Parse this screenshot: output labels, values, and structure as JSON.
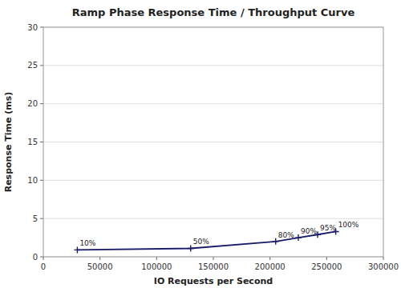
{
  "chart_data": {
    "type": "line",
    "title": "Ramp Phase Response Time / Throughput Curve",
    "x_label": "IO Requests per Second",
    "y_label": "Response Time (ms)",
    "x": [
      30000,
      130000,
      205000,
      225000,
      242000,
      258000
    ],
    "values": [
      0.9,
      1.1,
      2.0,
      2.5,
      2.9,
      3.3
    ],
    "annotations": [
      "10%",
      "50%",
      "80%",
      "90%",
      "95%",
      "100%"
    ],
    "color": "#1a1a6e",
    "marker": "plus",
    "xlim": [
      0,
      300000
    ],
    "ylim": [
      0,
      30
    ],
    "xticks": [
      0,
      50000,
      100000,
      150000,
      200000,
      250000,
      300000
    ],
    "yticks": [
      0,
      5,
      10,
      15,
      20,
      25,
      30
    ],
    "grid": "y"
  }
}
